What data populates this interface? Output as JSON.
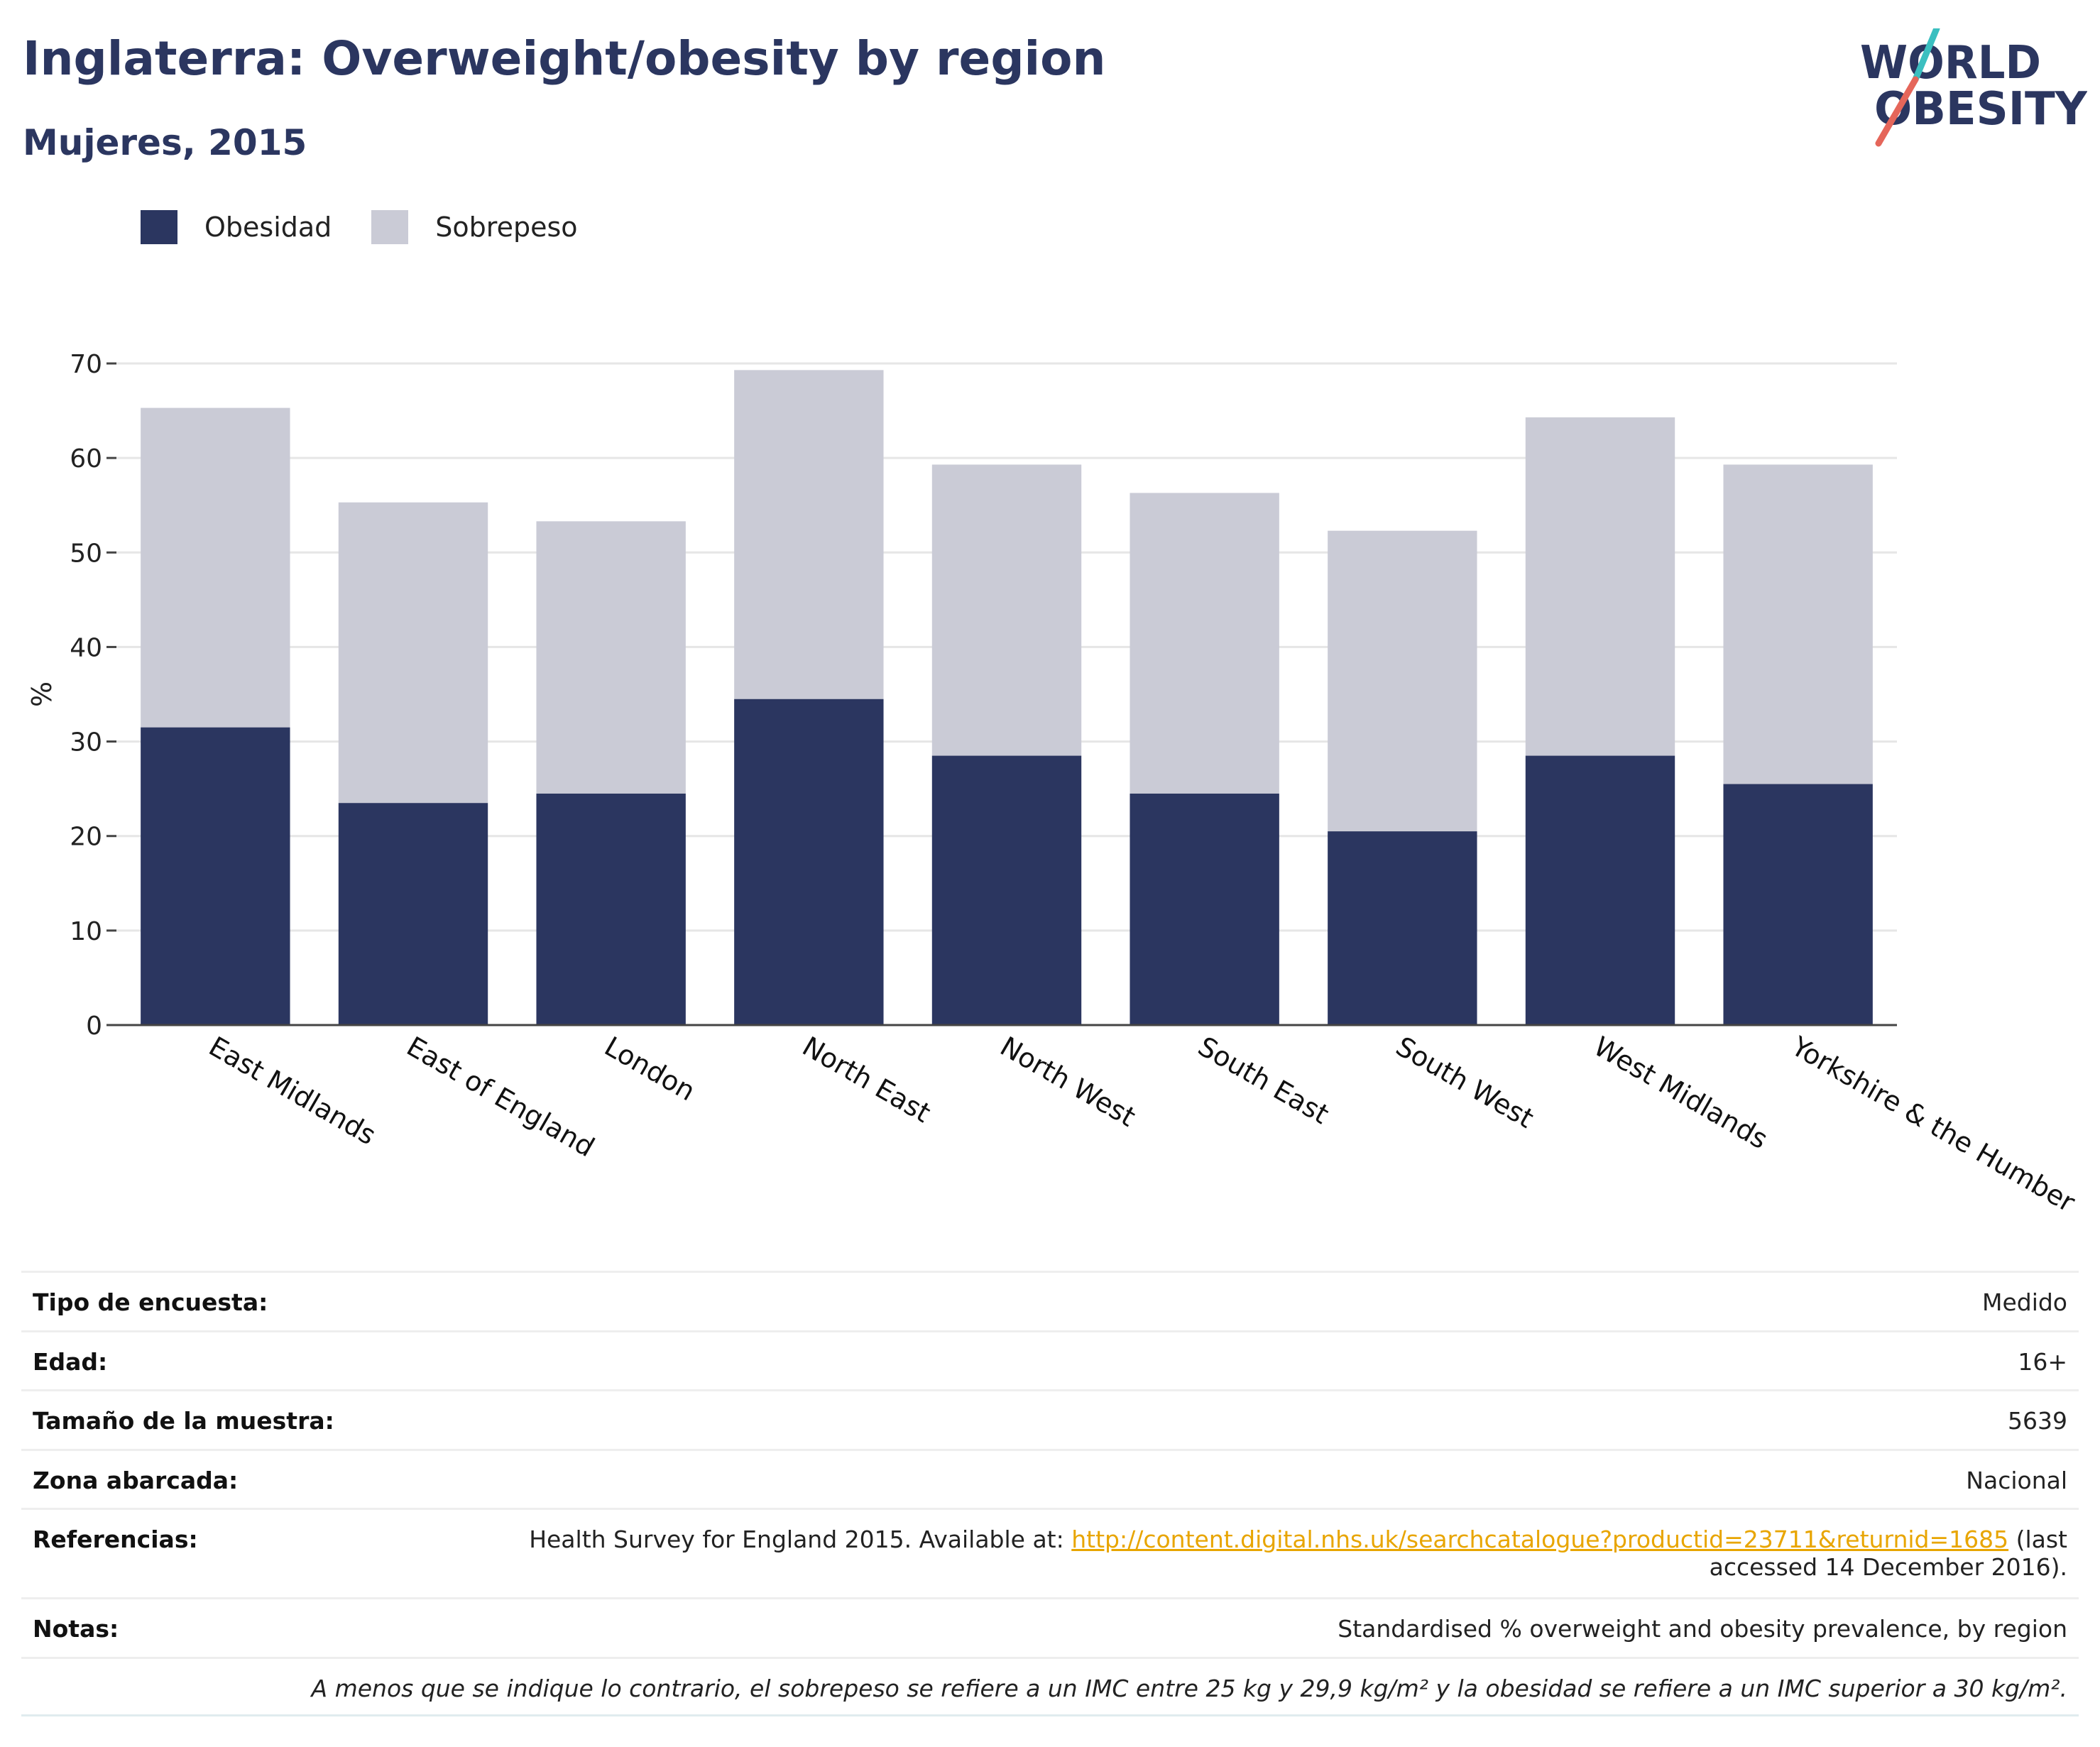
{
  "header": {
    "title": "Inglaterra: Overweight/obesity by region",
    "subtitle": "Mujeres, 2015"
  },
  "logo": {
    "line1": "WORLD",
    "line2": "OBESITY"
  },
  "legend": [
    {
      "label": "Obesidad",
      "color": "#2b3660"
    },
    {
      "label": "Sobrepeso",
      "color": "#cacbd6"
    }
  ],
  "chart_data": {
    "type": "bar",
    "stacked": true,
    "categories": [
      "East Midlands",
      "East of England",
      "London",
      "North East",
      "North West",
      "South East",
      "South West",
      "West Midlands",
      "Yorkshire & the Humber"
    ],
    "series": [
      {
        "name": "Obesidad",
        "color": "#2b3660",
        "values": [
          31.5,
          23.5,
          24.5,
          34.5,
          28.5,
          24.5,
          20.5,
          28.5,
          25.5
        ]
      },
      {
        "name": "Sobrepeso",
        "color": "#cacbd6",
        "values": [
          33.8,
          31.8,
          28.8,
          34.8,
          30.8,
          31.8,
          31.8,
          35.8,
          33.8
        ]
      }
    ],
    "ylabel": "%",
    "xlabel": "",
    "ylim": [
      0,
      70
    ],
    "yticks": [
      0,
      10,
      20,
      30,
      40,
      50,
      60,
      70
    ],
    "grid": true,
    "legend_position": "top-left"
  },
  "meta": {
    "survey_type": {
      "key": "Tipo de encuesta:",
      "value": "Medido"
    },
    "age": {
      "key": "Edad:",
      "value": "16+"
    },
    "sample_size": {
      "key": "Tamaño de la muestra:",
      "value": "5639"
    },
    "area": {
      "key": "Zona abarcada:",
      "value": "Nacional"
    },
    "references": {
      "key": "Referencias:",
      "prefix": "Health Survey for England 2015. Available at: ",
      "link": "http://content.digital.nhs.uk/searchcatalogue?productid=23711&returnid=1685",
      "suffix1": " (last",
      "suffix2": "accessed 14 December 2016)."
    },
    "notes": {
      "key": "Notas:",
      "value": "Standardised % overweight and obesity prevalence, by region"
    },
    "footnote": "A menos que se indique lo contrario, el sobrepeso se refiere a un IMC entre 25 kg y 29,9 kg/m² y la obesidad se refiere a un IMC superior a 30 kg/m²."
  }
}
